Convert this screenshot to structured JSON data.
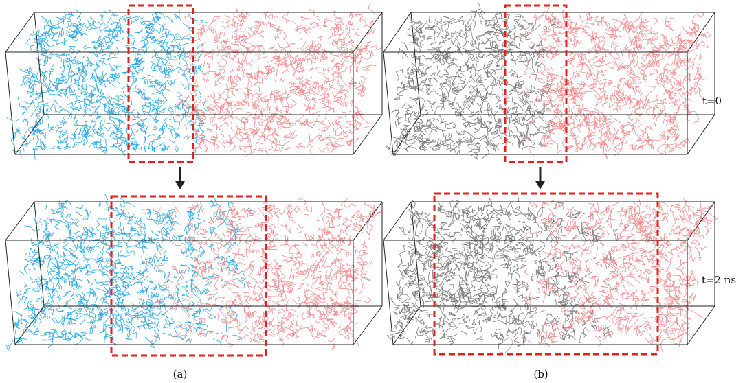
{
  "panels": [
    {
      "id": "a",
      "caption": "(a)",
      "species_colors": [
        "#29a9e1",
        "#f18c8e"
      ],
      "interface_fraction_t0": 0.5,
      "interface_fraction_t2": 0.52
    },
    {
      "id": "b",
      "caption": "(b)",
      "species_colors": [
        "#7a7a7a",
        "#f18c8e"
      ],
      "interface_fraction_t0": 0.47,
      "interface_fraction_t2": 0.55
    }
  ],
  "time_labels": [
    "t=0",
    "t=2 ns"
  ],
  "colors": {
    "box_edge": "#222222",
    "highlight": "#e0221f",
    "arrow": "#222222"
  }
}
